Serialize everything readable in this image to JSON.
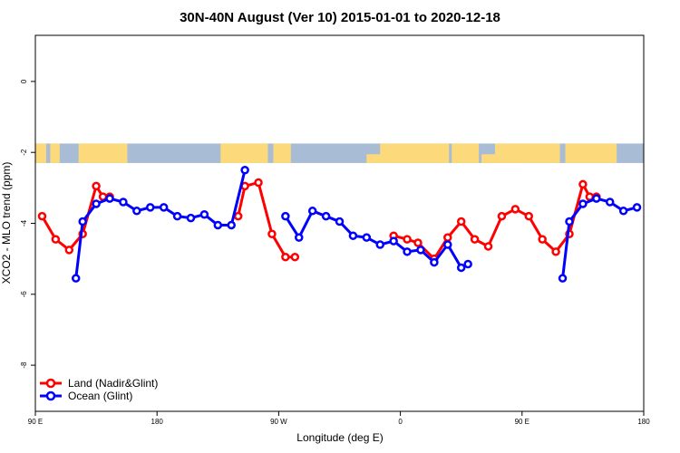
{
  "chart_data": {
    "type": "line",
    "title": "30N-40N August (Ver 10)   2015-01-01 to 2020-12-18",
    "xlabel": "Longitude (deg E)",
    "ylabel": "XCO2 - MLO trend (ppm)",
    "xlim": [
      90,
      540
    ],
    "ylim": [
      -9.3,
      1.3
    ],
    "x_ticks": [
      {
        "value": 90,
        "label": "90 E"
      },
      {
        "value": 180,
        "label": "180"
      },
      {
        "value": 270,
        "label": "90 W"
      },
      {
        "value": 360,
        "label": "0"
      },
      {
        "value": 450,
        "label": "90 E"
      },
      {
        "value": 540,
        "label": "180"
      }
    ],
    "y_ticks": [
      {
        "value": 0,
        "label": "0"
      },
      {
        "value": -2,
        "label": "-2"
      },
      {
        "value": -4,
        "label": "-4"
      },
      {
        "value": -6,
        "label": "-6"
      },
      {
        "value": -8,
        "label": "-8"
      }
    ],
    "map_strip": {
      "y_top": -1.75,
      "y_bottom": -2.3,
      "land_color": "#fcd97a",
      "ocean_color": "#a9bcd6"
    },
    "legend_position": "bottom-left",
    "series": [
      {
        "name": "Land (Nadir&Glint)",
        "color": "#ff0000",
        "segments": [
          [
            [
              95,
              -3.8
            ],
            [
              105,
              -4.45
            ],
            [
              115,
              -4.75
            ],
            [
              125,
              -4.3
            ],
            [
              135,
              -2.95
            ],
            [
              140,
              -3.25
            ],
            [
              145,
              -3.25
            ]
          ],
          [
            [
              240,
              -3.8
            ],
            [
              245,
              -2.95
            ],
            [
              255,
              -2.85
            ],
            [
              265,
              -4.3
            ],
            [
              275,
              -4.95
            ],
            [
              282,
              -4.95
            ]
          ],
          [
            [
              355,
              -4.35
            ],
            [
              365,
              -4.45
            ],
            [
              373,
              -4.55
            ],
            [
              385,
              -5.0
            ],
            [
              395,
              -4.4
            ],
            [
              405,
              -3.95
            ],
            [
              415,
              -4.45
            ],
            [
              425,
              -4.65
            ],
            [
              435,
              -3.8
            ],
            [
              445,
              -3.6
            ],
            [
              455,
              -3.8
            ],
            [
              465,
              -4.45
            ],
            [
              475,
              -4.8
            ],
            [
              485,
              -4.3
            ],
            [
              495,
              -2.9
            ],
            [
              500,
              -3.25
            ],
            [
              505,
              -3.25
            ]
          ]
        ]
      },
      {
        "name": "Ocean (Glint)",
        "color": "#0000ff",
        "segments": [
          [
            [
              120,
              -5.55
            ],
            [
              125,
              -3.95
            ],
            [
              135,
              -3.45
            ],
            [
              145,
              -3.3
            ],
            [
              155,
              -3.4
            ],
            [
              165,
              -3.65
            ],
            [
              175,
              -3.55
            ],
            [
              185,
              -3.55
            ],
            [
              195,
              -3.8
            ],
            [
              205,
              -3.85
            ],
            [
              215,
              -3.75
            ],
            [
              225,
              -4.05
            ],
            [
              235,
              -4.05
            ],
            [
              245,
              -2.5
            ]
          ],
          [
            [
              275,
              -3.8
            ],
            [
              285,
              -4.4
            ],
            [
              295,
              -3.65
            ],
            [
              305,
              -3.8
            ],
            [
              315,
              -3.95
            ],
            [
              325,
              -4.35
            ],
            [
              335,
              -4.4
            ],
            [
              345,
              -4.6
            ],
            [
              355,
              -4.5
            ],
            [
              365,
              -4.8
            ],
            [
              375,
              -4.75
            ],
            [
              385,
              -5.1
            ],
            [
              395,
              -4.6
            ],
            [
              405,
              -5.25
            ],
            [
              410,
              -5.15
            ]
          ],
          [
            [
              480,
              -5.55
            ],
            [
              485,
              -3.95
            ],
            [
              495,
              -3.45
            ],
            [
              505,
              -3.3
            ],
            [
              515,
              -3.4
            ],
            [
              525,
              -3.65
            ],
            [
              535,
              -3.55
            ]
          ]
        ]
      }
    ]
  }
}
